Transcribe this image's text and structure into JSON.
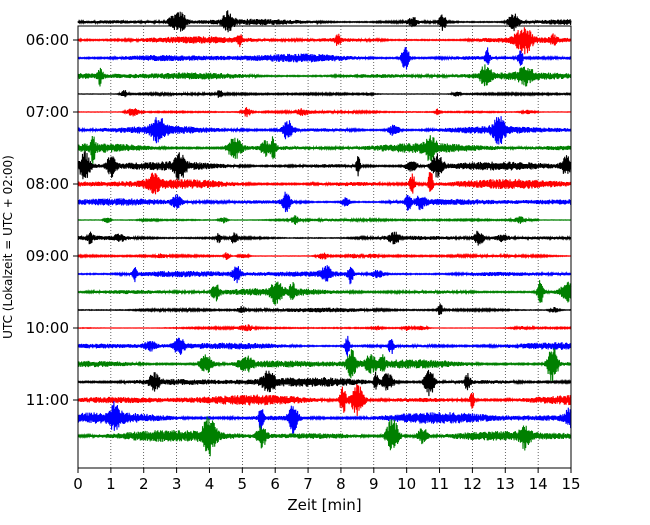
{
  "chart_data": {
    "type": "line",
    "title": "",
    "xlabel": "Zeit  [min]",
    "ylabel": "UTC (Lokalzeit = UTC + 02:00)",
    "xlim": [
      0,
      15
    ],
    "x_ticks": [
      "0",
      "1",
      "2",
      "3",
      "4",
      "5",
      "6",
      "7",
      "8",
      "9",
      "10",
      "11",
      "12",
      "13",
      "14",
      "15"
    ],
    "y_ticks": [
      "06:00",
      "07:00",
      "08:00",
      "09:00",
      "10:00",
      "11:00"
    ],
    "grid": "vertical dotted",
    "color_cycle": [
      "#000000",
      "#ff0000",
      "#0000ff",
      "#008000"
    ],
    "traces": [
      {
        "start": "05:45",
        "amplitude": 0.35
      },
      {
        "start": "06:00",
        "amplitude": 0.4
      },
      {
        "start": "06:15",
        "amplitude": 0.5
      },
      {
        "start": "06:30",
        "amplitude": 0.45
      },
      {
        "start": "06:45",
        "amplitude": 0.15
      },
      {
        "start": "07:00",
        "amplitude": 0.15
      },
      {
        "start": "07:15",
        "amplitude": 0.45
      },
      {
        "start": "07:30",
        "amplitude": 0.55
      },
      {
        "start": "07:45",
        "amplitude": 0.5
      },
      {
        "start": "08:00",
        "amplitude": 0.55
      },
      {
        "start": "08:15",
        "amplitude": 0.4
      },
      {
        "start": "08:30",
        "amplitude": 0.15
      },
      {
        "start": "08:45",
        "amplitude": 0.25
      },
      {
        "start": "09:00",
        "amplitude": 0.15
      },
      {
        "start": "09:15",
        "amplitude": 0.4
      },
      {
        "start": "09:30",
        "amplitude": 0.45
      },
      {
        "start": "09:45",
        "amplitude": 0.25
      },
      {
        "start": "10:00",
        "amplitude": 0.1
      },
      {
        "start": "10:15",
        "amplitude": 0.4
      },
      {
        "start": "10:30",
        "amplitude": 0.55
      },
      {
        "start": "10:45",
        "amplitude": 0.55
      },
      {
        "start": "11:00",
        "amplitude": 0.6
      },
      {
        "start": "11:15",
        "amplitude": 0.65
      },
      {
        "start": "11:30",
        "amplitude": 0.65
      }
    ]
  }
}
